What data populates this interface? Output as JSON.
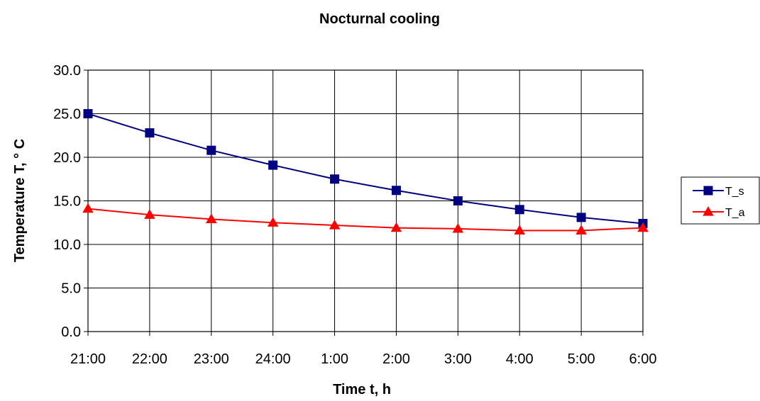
{
  "chart_data": {
    "type": "line",
    "title": "Nocturnal cooling",
    "xlabel": "Time t, h",
    "ylabel": "Temperature T, ° C",
    "categories": [
      "21:00",
      "22:00",
      "23:00",
      "24:00",
      "1:00",
      "2:00",
      "3:00",
      "4:00",
      "5:00",
      "6:00"
    ],
    "ylim": [
      0,
      30
    ],
    "yticks": [
      "0.0",
      "5.0",
      "10.0",
      "15.0",
      "20.0",
      "25.0",
      "30.0"
    ],
    "grid": true,
    "legend_position": "right",
    "series": [
      {
        "name": "T_s",
        "color": "#000080",
        "marker": "square",
        "values": [
          25.0,
          22.8,
          20.8,
          19.1,
          17.5,
          16.2,
          15.0,
          14.0,
          13.1,
          12.4
        ]
      },
      {
        "name": "T_a",
        "color": "#ff0000",
        "marker": "triangle",
        "values": [
          14.1,
          13.4,
          12.9,
          12.5,
          12.2,
          11.9,
          11.8,
          11.6,
          11.6,
          11.9
        ]
      }
    ]
  }
}
